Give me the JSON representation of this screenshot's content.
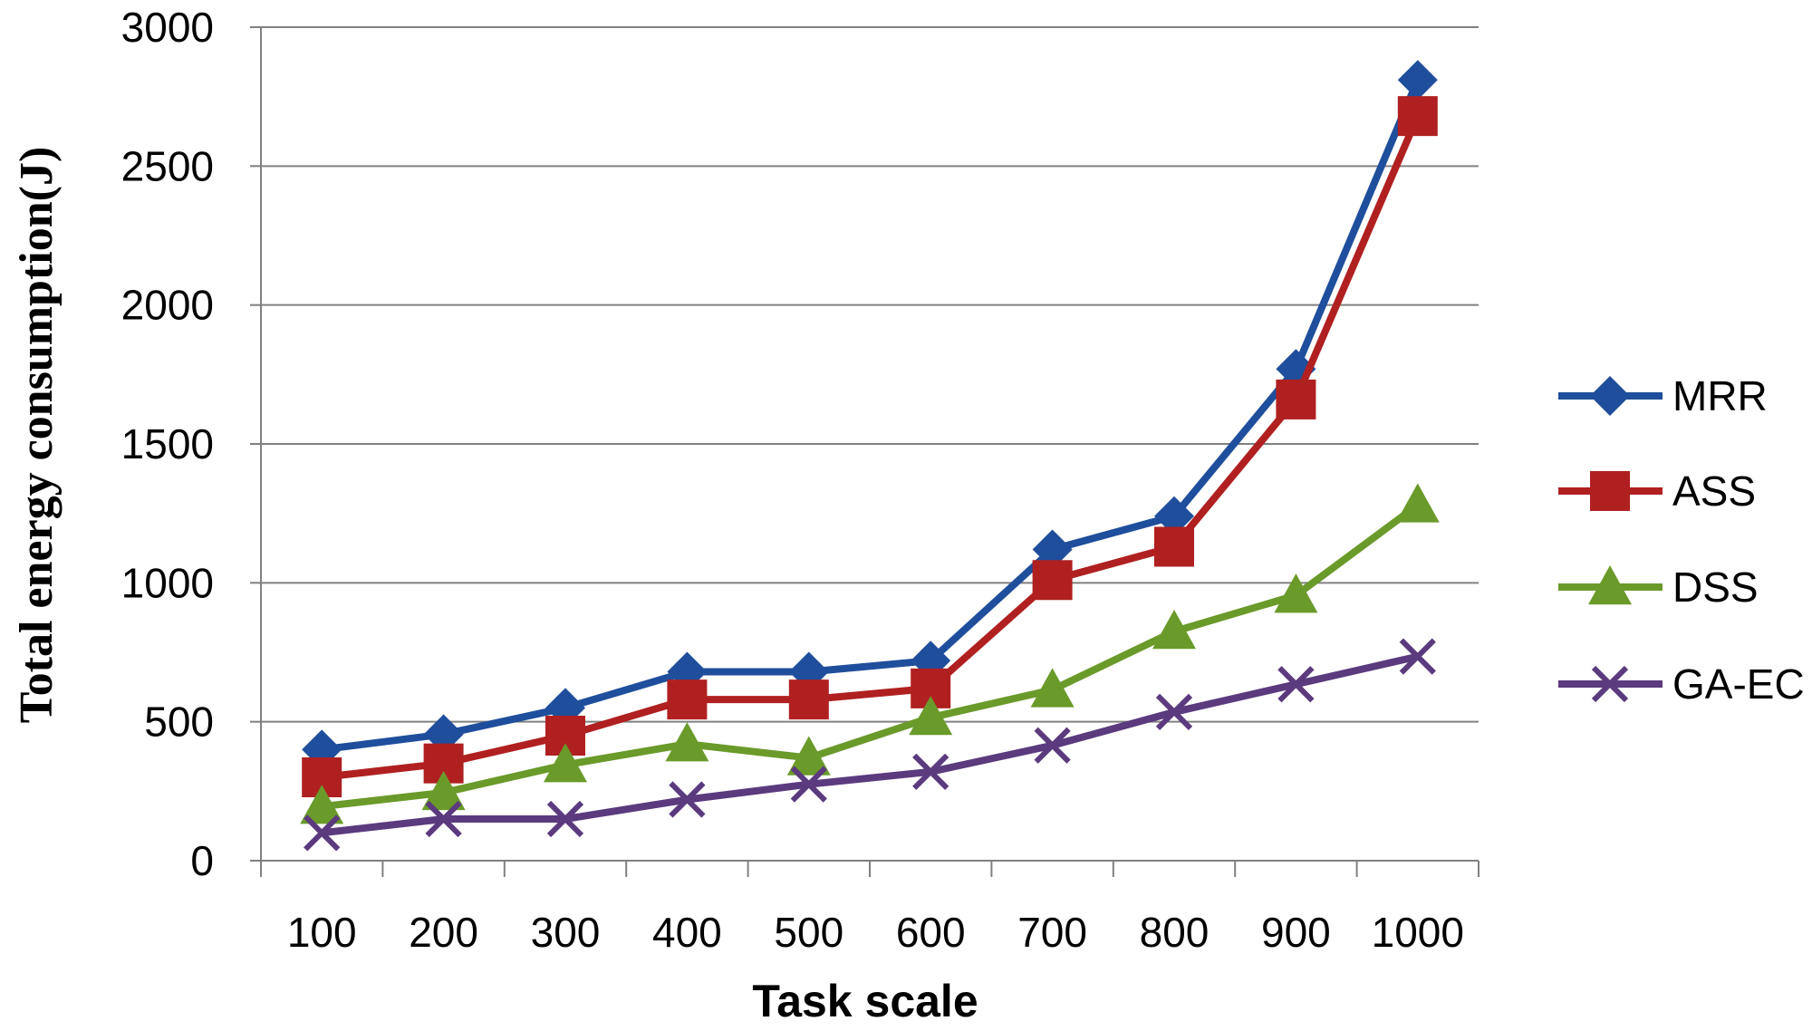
{
  "chart_data": {
    "type": "line",
    "title": "",
    "xlabel": "Task scale",
    "ylabel": "Total energy consumption(J)",
    "categories": [
      "100",
      "200",
      "300",
      "400",
      "500",
      "600",
      "700",
      "800",
      "900",
      "1000"
    ],
    "ylim": [
      0,
      3000
    ],
    "yticks": [
      0,
      500,
      1000,
      1500,
      2000,
      2500,
      3000
    ],
    "grid": true,
    "legend_position": "right",
    "series": [
      {
        "name": "MRR",
        "color": "#1f4e9c",
        "marker": "diamond",
        "values": [
          400,
          455,
          550,
          680,
          680,
          720,
          1120,
          1240,
          1770,
          2810
        ]
      },
      {
        "name": "ASS",
        "color": "#b02020",
        "marker": "square",
        "values": [
          300,
          350,
          450,
          580,
          580,
          620,
          1010,
          1130,
          1660,
          2680
        ]
      },
      {
        "name": "DSS",
        "color": "#6a9a2a",
        "marker": "triangle",
        "values": [
          195,
          245,
          345,
          420,
          370,
          515,
          615,
          825,
          955,
          1280
        ]
      },
      {
        "name": "GA-EC",
        "color": "#5b3a7e",
        "marker": "x",
        "values": [
          100,
          150,
          150,
          220,
          275,
          320,
          415,
          535,
          635,
          735
        ]
      }
    ]
  }
}
